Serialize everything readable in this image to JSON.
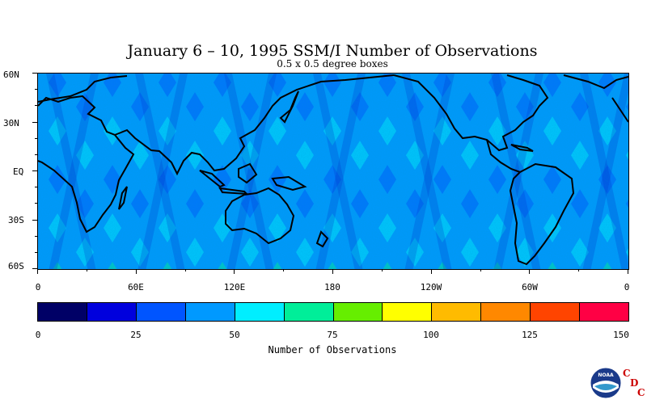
{
  "title": "January 6 – 10, 1995 SSM/I Number of Observations",
  "subtitle": "0.5 x 0.5 degree boxes",
  "lat_labels": [
    "60N",
    "30N",
    "EQ",
    "30S",
    "60S"
  ],
  "lon_labels": [
    "0",
    "60E",
    "120E",
    "180",
    "120W",
    "60W",
    "0"
  ],
  "colorbar": {
    "title": "Number of Observations",
    "tick_labels": [
      "0",
      "25",
      "50",
      "75",
      "100",
      "125",
      "150"
    ],
    "colors": [
      "#000066",
      "#0000dd",
      "#0055ff",
      "#0099ff",
      "#00eeff",
      "#00ee99",
      "#66ee00",
      "#ffff00",
      "#ffbb00",
      "#ff8800",
      "#ff4400",
      "#ff0044"
    ]
  },
  "logo": {
    "noaa_text": "NOAA",
    "cdc_letters": [
      "C",
      "D",
      "C"
    ]
  },
  "map": {
    "lat_range": [
      -60,
      60
    ],
    "lon_range": [
      0,
      360
    ],
    "background_color": "#0099ff",
    "coastline_color": "#000000"
  }
}
